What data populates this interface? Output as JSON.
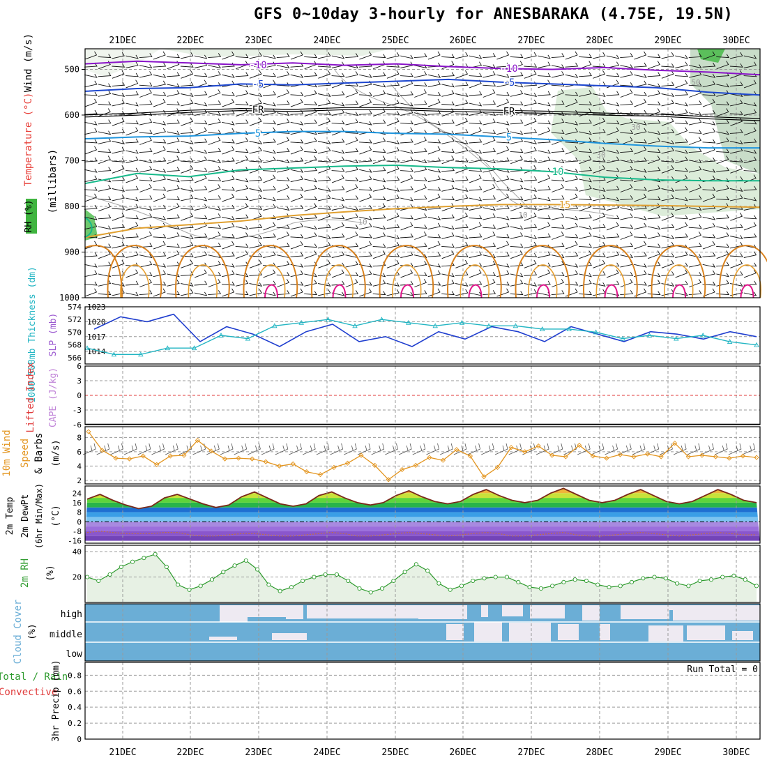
{
  "title": "GFS 0~10day 3-hourly for ANESBARAKA (4.75E, 19.5N)",
  "dates": [
    "21DEC",
    "22DEC",
    "23DEC",
    "24DEC",
    "25DEC",
    "26DEC",
    "27DEC",
    "28DEC",
    "29DEC",
    "30DEC"
  ],
  "colors": {
    "grid": "#9a9a9a",
    "frame": "#000000",
    "rh_fill": "#d6e9d2",
    "cloud": "#6baed6",
    "slp": "#1f3ecf",
    "thick": "#22b5c3",
    "wind10": "#e3951f",
    "rh2m": "#2e9b2e"
  },
  "chart_data": [
    {
      "type": "line",
      "panel": "upper-air",
      "ylabel_parts": [
        "Wind (m/s)",
        "Temperature (°C)",
        "RH (%)",
        "(millibars)"
      ],
      "y_ticks": [
        500,
        600,
        700,
        800,
        900,
        1000
      ],
      "ylim": [
        455,
        1000
      ],
      "isotherms": [
        {
          "label": "-10",
          "pressure": [
            488,
            482,
            486,
            490,
            486,
            491,
            488,
            494,
            498,
            500,
            496,
            502,
            506,
            512
          ],
          "label_text": [
            "-10",
            "-10"
          ]
        },
        {
          "label": "-5",
          "pressure": [
            548,
            542,
            540,
            532,
            534,
            530,
            526,
            522,
            528,
            532,
            536,
            540,
            550,
            556
          ],
          "label_text": [
            "-5",
            "-5"
          ]
        },
        {
          "label": "FR",
          "pressure": [
            602,
            598,
            592,
            588,
            590,
            586,
            586,
            590,
            592,
            594,
            598,
            600,
            606,
            610
          ],
          "label_text": [
            "FR",
            "FR"
          ]
        },
        {
          "label": "5",
          "pressure": [
            652,
            648,
            646,
            640,
            636,
            636,
            640,
            642,
            648,
            654,
            662,
            668,
            672,
            672
          ],
          "label_text": [
            "5",
            "5"
          ]
        },
        {
          "label": "10",
          "pressure": [
            750,
            728,
            735,
            720,
            716,
            712,
            710,
            715,
            718,
            724,
            736,
            742,
            744,
            744
          ],
          "label_text": [
            "10"
          ]
        },
        {
          "label": "15",
          "pressure": [
            868,
            848,
            840,
            832,
            820,
            812,
            805,
            800,
            796,
            796,
            797,
            798,
            800,
            802
          ],
          "label_text": [
            "15"
          ]
        }
      ],
      "rh_labels": [
        "10",
        "10",
        "30",
        "30",
        "50"
      ]
    },
    {
      "type": "line",
      "panel": "slp-thickness",
      "ylabel_parts": [
        "1000-500mb Thickness (dm)",
        "SLP (mb)"
      ],
      "left_ticks": [
        566,
        568,
        570,
        572,
        574
      ],
      "right_ticks": [
        1014,
        1017,
        1020,
        1023
      ],
      "series": [
        {
          "name": "SLP (mb)",
          "y": [
            1018.5,
            1021,
            1020,
            1021.5,
            1016,
            1019,
            1017.5,
            1015,
            1018,
            1019.5,
            1016,
            1017,
            1015,
            1018,
            1016.5,
            1019,
            1018,
            1016,
            1019,
            1017.5,
            1016,
            1018,
            1017.5,
            1016.5,
            1018,
            1017
          ]
        },
        {
          "name": "1000-500mb Thickness (dm)",
          "y": [
            567.5,
            566.5,
            566.5,
            567.5,
            567.5,
            569.5,
            569,
            571,
            571.5,
            572,
            571,
            572,
            571.5,
            571,
            571.5,
            571,
            571,
            570.5,
            570.5,
            570,
            569,
            569.5,
            569,
            569.5,
            568.5,
            568
          ]
        }
      ]
    },
    {
      "type": "line",
      "panel": "cape-li",
      "ylabel_parts": [
        "Lifted Index",
        "CAPE (J/kg)"
      ],
      "y_ticks": [
        6,
        3,
        0,
        -3,
        -6
      ],
      "series": [
        {
          "name": "CAPE (J/kg)",
          "y": [
            0,
            0,
            0,
            0,
            0,
            0,
            0,
            0,
            0,
            0
          ]
        }
      ]
    },
    {
      "type": "line",
      "panel": "wind10m",
      "ylabel_parts": [
        "10m Wind Speed",
        "& Barbs",
        "(m/s)"
      ],
      "y_ticks": [
        2,
        4,
        6,
        8
      ],
      "series": [
        {
          "name": "10m Wind Speed",
          "y": [
            8.8,
            6.2,
            5.1,
            5,
            5.4,
            4.2,
            5.4,
            5.5,
            7.6,
            6.1,
            5,
            5.1,
            5,
            4.6,
            4,
            4.3,
            3.2,
            2.8,
            3.8,
            4.4,
            5.5,
            4.1,
            2.1,
            3.5,
            4.1,
            5.2,
            4.8,
            6.3,
            5.4,
            2.5,
            3.8,
            6.6,
            6,
            6.8,
            5.5,
            5.3,
            6.9,
            5.4,
            5.1,
            5.6,
            5.3,
            5.7,
            5.3,
            7.2,
            5.3,
            5.5,
            5.3,
            5.1,
            5.4,
            5.2
          ]
        }
      ]
    },
    {
      "type": "line",
      "panel": "temp2m",
      "ylabel_parts": [
        "2m Temp",
        "2m DewPt",
        "(6hr Min/Max)",
        "(°C)"
      ],
      "y_ticks": [
        24,
        16,
        8,
        0,
        -8,
        -16
      ],
      "series": [
        {
          "name": "2m Temp",
          "y": [
            19,
            23,
            18,
            14,
            11,
            13,
            20,
            23,
            19,
            15,
            12,
            14,
            21,
            25,
            20,
            15,
            13,
            15,
            22,
            25,
            20,
            16,
            14,
            16,
            22,
            26,
            21,
            17,
            15,
            17,
            23,
            27,
            22,
            18,
            16,
            18,
            24,
            28,
            23,
            18,
            16,
            18,
            23,
            27,
            22,
            17,
            15,
            17,
            22,
            27,
            23,
            18,
            16
          ]
        },
        {
          "name": "2m DewPt",
          "y": [
            -9,
            -8,
            -9,
            -10,
            -10,
            -10,
            -9,
            -9,
            -11,
            -12,
            -12,
            -11,
            -10,
            -10,
            -11,
            -12,
            -12,
            -11,
            -10,
            -9,
            -10,
            -12,
            -12,
            -11,
            -10,
            -9,
            -10,
            -11,
            -12,
            -11,
            -10,
            -9,
            -10,
            -12,
            -12,
            -11,
            -10,
            -9,
            -11,
            -12,
            -12,
            -11,
            -10,
            -9,
            -10,
            -11,
            -12,
            -11,
            -10,
            -9,
            -10,
            -11,
            -11
          ]
        }
      ]
    },
    {
      "type": "area",
      "panel": "rh2m",
      "ylabel_parts": [
        "2m RH",
        "(%)"
      ],
      "y_ticks": [
        20,
        40
      ],
      "series": [
        {
          "name": "2m RH",
          "y": [
            20,
            17,
            22,
            28,
            32,
            35,
            38,
            28,
            14,
            10,
            13,
            18,
            24,
            29,
            33,
            26,
            14,
            9,
            12,
            17,
            20,
            22,
            22,
            17,
            11,
            8,
            11,
            17,
            24,
            30,
            25,
            15,
            10,
            13,
            17,
            19,
            20,
            20,
            16,
            12,
            11,
            13,
            16,
            18,
            17,
            14,
            12,
            13,
            16,
            19,
            20,
            19,
            15,
            13,
            17,
            18,
            20,
            21,
            18,
            13
          ]
        }
      ]
    },
    {
      "type": "area",
      "panel": "cloud",
      "ylabel_parts": [
        "Cloud Cover",
        "(%)"
      ],
      "levels": [
        "high",
        "middle",
        "low"
      ]
    },
    {
      "type": "bar",
      "panel": "precip",
      "ylabel_parts": [
        "Total / Rain",
        "Convective",
        "3hr Precip (mm)"
      ],
      "y_ticks": [
        0,
        0.2,
        0.4,
        0.6,
        0.8
      ],
      "run_total": "Run Total = 0",
      "series": [
        {
          "name": "3hr Precip (mm)",
          "y": [
            0,
            0,
            0,
            0,
            0,
            0,
            0,
            0,
            0,
            0
          ]
        }
      ]
    }
  ]
}
